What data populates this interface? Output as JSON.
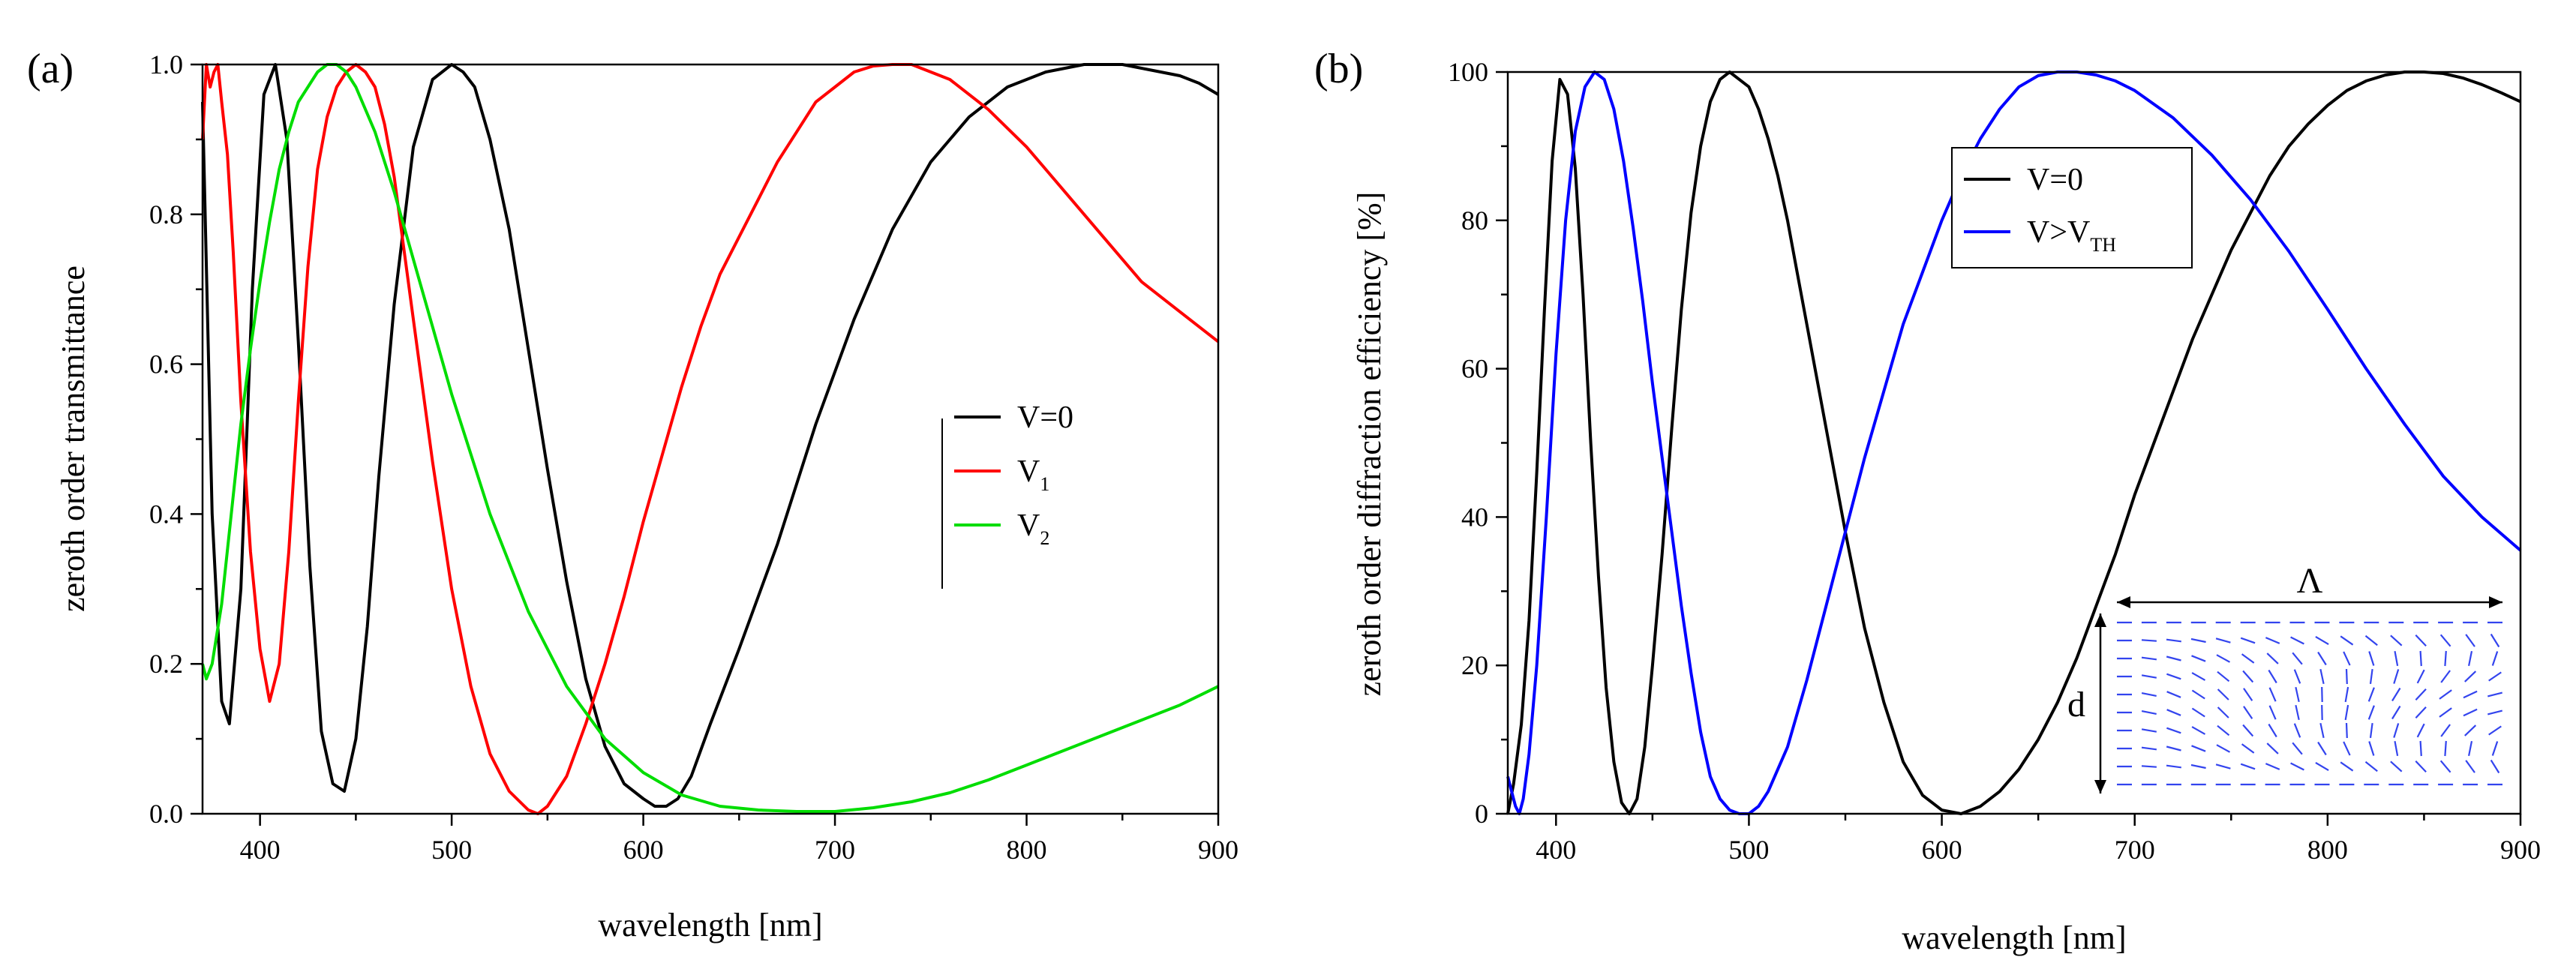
{
  "chart_data": [
    {
      "type": "line",
      "panel": "(a)",
      "xlabel": "wavelength [nm]",
      "ylabel": "zeroth order transmittance",
      "xlim": [
        370,
        900
      ],
      "ylim": [
        0,
        1.0
      ],
      "xticks": [
        "400",
        "500",
        "600",
        "700",
        "800",
        "900"
      ],
      "yticks": [
        "0.0",
        "0.2",
        "0.4",
        "0.6",
        "0.8",
        "1.0"
      ],
      "grid": false,
      "legend_position": "middle-right",
      "series": [
        {
          "name": "V=0",
          "legend_main": "V=0",
          "legend_sub": "",
          "color": "#000000",
          "x": [
            370,
            375,
            380,
            384,
            390,
            396,
            402,
            408,
            414,
            420,
            426,
            432,
            438,
            444,
            450,
            456,
            462,
            470,
            480,
            490,
            500,
            506,
            512,
            520,
            530,
            540,
            550,
            560,
            570,
            580,
            590,
            600,
            606,
            612,
            618,
            625,
            635,
            650,
            670,
            690,
            710,
            730,
            750,
            770,
            790,
            810,
            830,
            850,
            860,
            870,
            880,
            890,
            900
          ],
          "y": [
            0.95,
            0.4,
            0.15,
            0.12,
            0.3,
            0.7,
            0.96,
            1.0,
            0.9,
            0.63,
            0.33,
            0.11,
            0.04,
            0.03,
            0.1,
            0.25,
            0.45,
            0.68,
            0.89,
            0.98,
            1.0,
            0.99,
            0.97,
            0.9,
            0.78,
            0.62,
            0.46,
            0.31,
            0.18,
            0.09,
            0.04,
            0.02,
            0.01,
            0.01,
            0.02,
            0.05,
            0.12,
            0.22,
            0.36,
            0.52,
            0.66,
            0.78,
            0.87,
            0.93,
            0.97,
            0.99,
            1.0,
            1.0,
            0.995,
            0.99,
            0.985,
            0.975,
            0.96
          ]
        },
        {
          "name": "V1",
          "legend_main": "V",
          "legend_sub": "1",
          "color": "#ff0000",
          "x": [
            370,
            372,
            374,
            376,
            378,
            380,
            383,
            386,
            390,
            395,
            400,
            405,
            410,
            415,
            420,
            425,
            430,
            435,
            440,
            445,
            450,
            455,
            460,
            465,
            470,
            480,
            490,
            500,
            510,
            520,
            530,
            540,
            545,
            550,
            560,
            570,
            580,
            590,
            600,
            610,
            620,
            630,
            640,
            650,
            660,
            670,
            680,
            690,
            700,
            710,
            720,
            730,
            740,
            750,
            760,
            780,
            800,
            820,
            840,
            860,
            880,
            900
          ],
          "y": [
            0.9,
            1.0,
            0.97,
            0.99,
            1.0,
            0.95,
            0.88,
            0.75,
            0.55,
            0.35,
            0.22,
            0.15,
            0.2,
            0.35,
            0.55,
            0.73,
            0.86,
            0.93,
            0.97,
            0.99,
            1.0,
            0.99,
            0.97,
            0.92,
            0.85,
            0.66,
            0.47,
            0.3,
            0.17,
            0.08,
            0.03,
            0.005,
            0.0,
            0.01,
            0.05,
            0.12,
            0.2,
            0.29,
            0.39,
            0.48,
            0.57,
            0.65,
            0.72,
            0.77,
            0.82,
            0.87,
            0.91,
            0.95,
            0.97,
            0.99,
            0.998,
            1.0,
            1.0,
            0.99,
            0.98,
            0.94,
            0.89,
            0.83,
            0.77,
            0.71,
            0.67,
            0.63
          ]
        },
        {
          "name": "V2",
          "legend_main": "V",
          "legend_sub": "2",
          "color": "#00dd00",
          "x": [
            370,
            372,
            375,
            380,
            385,
            390,
            395,
            400,
            405,
            410,
            415,
            420,
            425,
            430,
            435,
            440,
            445,
            450,
            460,
            470,
            480,
            490,
            500,
            520,
            540,
            560,
            580,
            600,
            620,
            640,
            660,
            680,
            700,
            720,
            740,
            760,
            780,
            800,
            820,
            840,
            860,
            880,
            900
          ],
          "y": [
            0.2,
            0.18,
            0.2,
            0.28,
            0.4,
            0.52,
            0.62,
            0.71,
            0.79,
            0.86,
            0.91,
            0.95,
            0.97,
            0.99,
            1.0,
            1.0,
            0.99,
            0.97,
            0.91,
            0.83,
            0.74,
            0.65,
            0.56,
            0.4,
            0.27,
            0.17,
            0.1,
            0.055,
            0.025,
            0.01,
            0.005,
            0.003,
            0.003,
            0.008,
            0.016,
            0.028,
            0.045,
            0.065,
            0.085,
            0.105,
            0.125,
            0.145,
            0.17
          ]
        }
      ]
    },
    {
      "type": "line",
      "panel": "(b)",
      "xlabel": "wavelength [nm]",
      "ylabel": "zeroth order diffraction efficiency [%]",
      "xlim": [
        375,
        900
      ],
      "ylim": [
        0,
        100
      ],
      "xticks": [
        "400",
        "500",
        "600",
        "700",
        "800",
        "900"
      ],
      "yticks": [
        "0",
        "20",
        "40",
        "60",
        "80",
        "100"
      ],
      "grid": false,
      "legend_position": "upper-middle-right",
      "series": [
        {
          "name": "V=0",
          "legend_main": "V=0",
          "legend_sub": "",
          "color": "#000000",
          "x": [
            375,
            378,
            382,
            386,
            390,
            394,
            398,
            402,
            406,
            410,
            414,
            418,
            422,
            426,
            430,
            434,
            438,
            442,
            446,
            450,
            455,
            460,
            465,
            470,
            475,
            480,
            485,
            490,
            495,
            500,
            505,
            510,
            515,
            520,
            525,
            530,
            540,
            550,
            560,
            570,
            580,
            590,
            600,
            610,
            620,
            630,
            640,
            650,
            660,
            670,
            680,
            690,
            700,
            710,
            720,
            730,
            740,
            750,
            760,
            770,
            780,
            790,
            800,
            810,
            820,
            830,
            840,
            850,
            860,
            870,
            880,
            890,
            900
          ],
          "y": [
            0,
            4,
            12,
            26,
            46,
            68,
            88,
            99,
            97,
            87,
            70,
            50,
            32,
            17,
            7,
            1.5,
            0,
            2,
            9,
            20,
            35,
            52,
            68,
            81,
            90,
            96,
            99,
            100,
            99,
            98,
            95,
            91,
            86,
            80,
            73,
            66,
            52,
            38,
            25,
            15,
            7,
            2.5,
            0.5,
            0,
            1,
            3,
            6,
            10,
            15,
            21,
            28,
            35,
            43,
            50,
            57,
            64,
            70,
            76,
            81,
            86,
            90,
            93,
            95.5,
            97.5,
            98.8,
            99.6,
            100,
            100,
            99.8,
            99.2,
            98.3,
            97.2,
            96
          ]
        },
        {
          "name": "V>VTH",
          "legend_main": "V>V",
          "legend_sub": "TH",
          "color": "#0000ff",
          "x": [
            375,
            377,
            379,
            381,
            383,
            386,
            390,
            395,
            400,
            405,
            410,
            415,
            420,
            425,
            430,
            435,
            440,
            445,
            450,
            455,
            460,
            465,
            470,
            475,
            480,
            485,
            490,
            495,
            500,
            505,
            510,
            520,
            530,
            540,
            550,
            560,
            570,
            580,
            590,
            600,
            610,
            620,
            630,
            640,
            650,
            660,
            670,
            680,
            690,
            700,
            720,
            740,
            760,
            780,
            800,
            820,
            840,
            860,
            880,
            900
          ],
          "y": [
            5,
            3,
            1,
            0,
            2,
            8,
            20,
            40,
            62,
            80,
            92,
            98,
            100,
            99,
            95,
            88,
            79,
            69,
            58,
            48,
            38,
            28,
            19,
            11,
            5,
            2,
            0.5,
            0,
            0,
            1,
            3,
            9,
            18,
            28,
            38,
            48,
            57,
            66,
            73,
            80,
            86,
            91,
            95,
            98,
            99.5,
            100,
            100,
            99.6,
            98.8,
            97.5,
            93.8,
            88.8,
            82.8,
            75.8,
            68,
            60,
            52.5,
            45.5,
            40,
            35.5
          ]
        }
      ]
    }
  ]
}
